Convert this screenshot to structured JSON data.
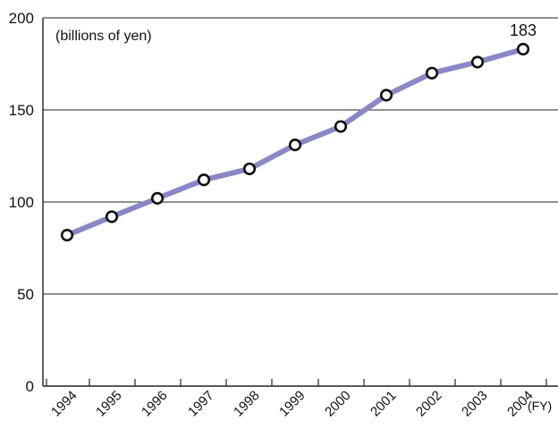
{
  "colors": {
    "line": "#8a87c6",
    "marker_fill": "#ffffff",
    "marker_stroke": "#111111",
    "grid": "#222222",
    "text": "#111111"
  },
  "chart_data": {
    "type": "line",
    "title": "",
    "unit_label": "(billions of yen)",
    "xlabel": "(FY)",
    "ylabel": "",
    "categories": [
      "1994",
      "1995",
      "1996",
      "1997",
      "1998",
      "1999",
      "2000",
      "2001",
      "2002",
      "2003",
      "2004"
    ],
    "series": [
      {
        "values": [
          82,
          92,
          102,
          112,
          118,
          131,
          141,
          158,
          170,
          176,
          183
        ]
      }
    ],
    "annotations": [
      {
        "category": "2004",
        "text": "183"
      }
    ],
    "yticks": [
      "0",
      "50",
      "100",
      "150",
      "200"
    ],
    "ylim": [
      0,
      200
    ],
    "grid": true,
    "legend": "none"
  }
}
